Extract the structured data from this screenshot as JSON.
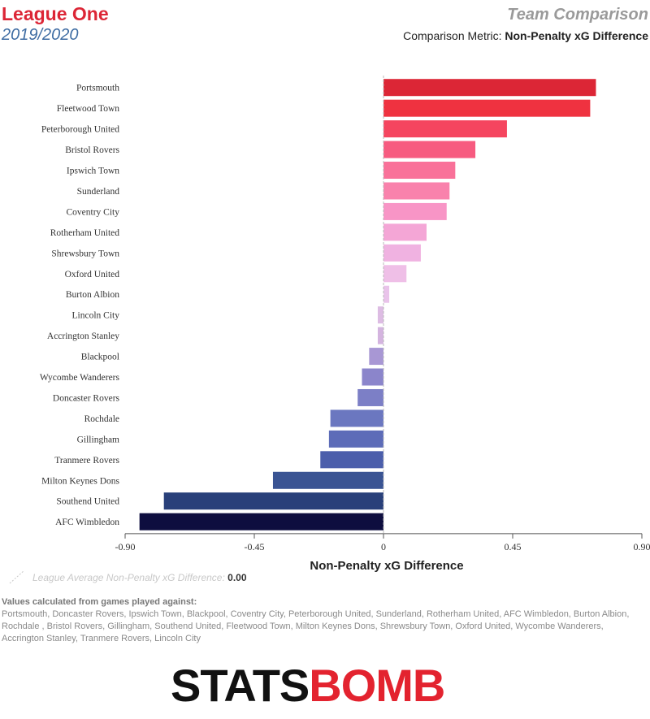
{
  "header": {
    "league": "League One",
    "season": "2019/2020",
    "page_title": "Team Comparison",
    "metric_prefix": "Comparison Metric:",
    "metric_name": "Non-Penalty xG Difference"
  },
  "chart_data": {
    "type": "bar",
    "orientation": "horizontal",
    "xlabel": "Non-Penalty xG Difference",
    "xlim": [
      -0.9,
      0.9
    ],
    "xticks": [
      "-0.90",
      "-0.45",
      "0",
      "0.45",
      "0.90"
    ],
    "xtick_values": [
      -0.9,
      -0.45,
      0,
      0.45,
      0.9
    ],
    "grid": false,
    "categories": [
      "Portsmouth",
      "Fleetwood Town",
      "Peterborough United",
      "Bristol Rovers",
      "Ipswich Town",
      "Sunderland",
      "Coventry City",
      "Rotherham United",
      "Shrewsbury Town",
      "Oxford United",
      "Burton Albion",
      "Lincoln City",
      "Accrington Stanley",
      "Blackpool",
      "Wycombe Wanderers",
      "Doncaster Rovers",
      "Rochdale",
      "Gillingham",
      "Tranmere Rovers",
      "Milton Keynes Dons",
      "Southend United",
      "AFC Wimbledon"
    ],
    "values": [
      0.74,
      0.72,
      0.43,
      0.32,
      0.25,
      0.23,
      0.22,
      0.15,
      0.13,
      0.08,
      0.02,
      -0.02,
      -0.02,
      -0.05,
      -0.075,
      -0.09,
      -0.185,
      -0.19,
      -0.22,
      -0.385,
      -0.765,
      -0.85
    ],
    "colors": [
      "#dc2636",
      "#ef3240",
      "#f5455f",
      "#f75b80",
      "#f97199",
      "#f982ac",
      "#f895c6",
      "#f4a6d6",
      "#f0b2e1",
      "#efbfe7",
      "#e9c3ea",
      "#ddbce3",
      "#d4b4df",
      "#a897d4",
      "#8b85cb",
      "#7c7fc6",
      "#6b77c0",
      "#5d6cb8",
      "#4b5eab",
      "#3a5493",
      "#29407a",
      "#0e0e3f"
    ],
    "reference_line": {
      "label": "League Average Non-Penalty xG Difference:",
      "value": "0.00"
    }
  },
  "footnote": {
    "heading": "Values calculated from games played against:",
    "text": "Portsmouth, Doncaster Rovers, Ipswich Town, Blackpool, Coventry City, Peterborough United, Sunderland, Rotherham United, AFC Wimbledon, Burton Albion, Rochdale , Bristol Rovers, Gillingham, Southend United, Fleetwood Town, Milton Keynes Dons, Shrewsbury Town, Oxford United, Wycombe Wanderers, Accrington Stanley, Tranmere Rovers, Lincoln City"
  },
  "logo": {
    "part1": "STATS",
    "part2": "BOMB"
  }
}
